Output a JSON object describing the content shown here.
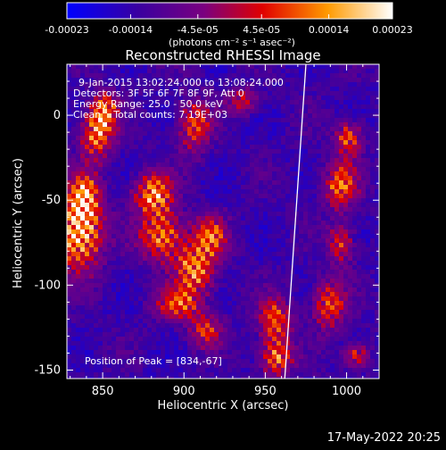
{
  "chart_data": {
    "type": "heatmap",
    "title": "Reconstructed RHESSI Image",
    "xlabel": "Heliocentric X (arcsec)",
    "ylabel": "Heliocentric Y (arcsec)",
    "xlim": [
      828,
      1020
    ],
    "ylim": [
      -155,
      30
    ],
    "xticks": [
      850,
      900,
      950,
      1000
    ],
    "yticks": [
      0,
      -50,
      -100,
      -150
    ],
    "colorbar": {
      "min": -0.00023,
      "max": 0.00023,
      "ticks": [
        "-0.00023",
        "-0.00014",
        "-4.5e-05",
        "4.5e-05",
        "0.00014",
        "0.00023"
      ],
      "tick_values": [
        -0.00023,
        -0.00014,
        -4.5e-05,
        4.5e-05,
        0.00014,
        0.00023
      ],
      "unit_line": "(photons cm⁻² s⁻¹ asec⁻²)"
    },
    "annotations": [
      "9-Jan-2015 13:02:24.000 to 13:08:24.000",
      "Detectors: 3F 5F 6F 7F 8F 9F, Att 0",
      "Energy Range: 25.0 - 50.0 keV",
      "Clean    Total counts: 7.19E+03",
      "Position of Peak = [834,-67]"
    ],
    "peak_position": [
      834,
      -67
    ],
    "limb_line": [
      [
        975,
        30
      ],
      [
        962,
        -155
      ]
    ],
    "colors": {
      "colormap_stops": [
        "#0000ff",
        "#4b0082",
        "#800080",
        "#ff0000",
        "#ff8c00",
        "#ffffff"
      ]
    }
  },
  "footer": {
    "timestamp": "17-May-2022 20:25"
  }
}
